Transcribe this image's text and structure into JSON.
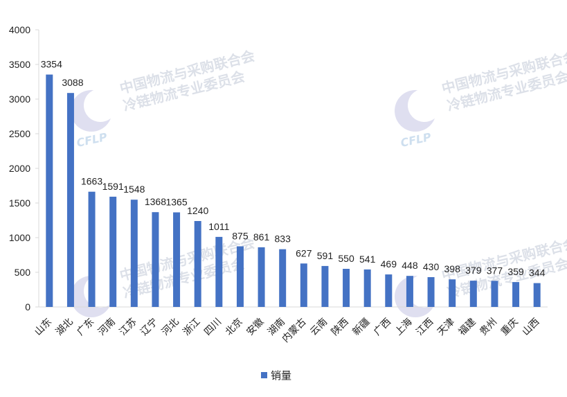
{
  "chart_data": {
    "type": "bar",
    "categories": [
      "山东",
      "湖北",
      "广东",
      "河南",
      "江苏",
      "辽宁",
      "河北",
      "浙江",
      "四川",
      "北京",
      "安徽",
      "湖南",
      "内蒙古",
      "云南",
      "陕西",
      "新疆",
      "广西",
      "上海",
      "江西",
      "天津",
      "福建",
      "贵州",
      "重庆",
      "山西"
    ],
    "series": [
      {
        "name": "销量",
        "color": "#4472c4",
        "values": [
          3354,
          3088,
          1663,
          1591,
          1548,
          1368,
          1365,
          1240,
          1011,
          875,
          861,
          833,
          627,
          591,
          550,
          541,
          469,
          448,
          430,
          398,
          379,
          377,
          359,
          344
        ]
      }
    ],
    "ylim": [
      0,
      4000
    ],
    "yticks": [
      0,
      500,
      1000,
      1500,
      2000,
      2500,
      3000,
      3500,
      4000
    ],
    "legend_position": "bottom",
    "grid": false
  },
  "watermark": {
    "line1": "中国物流与采购联合会",
    "line2": "冷链物流专业委员会",
    "logo_text": "CFLP"
  }
}
